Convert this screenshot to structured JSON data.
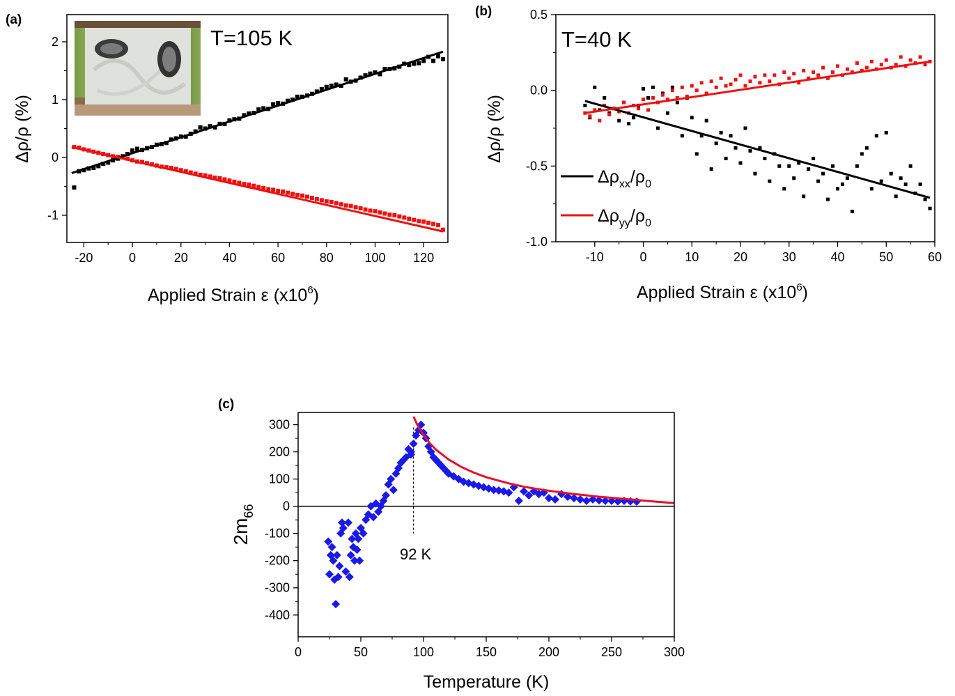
{
  "colors": {
    "black": "#000000",
    "red": "#ee1111",
    "blue": "#1a1ae6",
    "fit_red": "#e8102a"
  },
  "chart_data": [
    {
      "id": "a",
      "panel_label": "(a)",
      "type": "scatter",
      "annotation": "T=105 K",
      "inset_image": "sample-photo",
      "xlabel_main": "Applied Strain ε (x10",
      "xlabel_sup": "6",
      "xlabel_end": ")",
      "ylabel": "Δρ/ρ (%)",
      "xlim": [
        -27,
        130
      ],
      "ylim": [
        -1.47,
        2.47
      ],
      "xticks": [
        -20,
        0,
        20,
        40,
        60,
        80,
        100,
        120
      ],
      "yticks": [
        -1,
        0,
        1,
        2
      ],
      "xtick_labels": [
        "-20",
        "0",
        "20",
        "40",
        "60",
        "80",
        "100",
        "120"
      ],
      "ytick_labels": [
        "-1",
        "0",
        "1",
        "2"
      ],
      "series": [
        {
          "color": "#000000",
          "fit": {
            "x": [
              -25,
              128
            ],
            "y": [
              -0.27,
              1.83
            ]
          },
          "x": [
            -24,
            -22,
            -20,
            -18,
            -16,
            -14,
            -12,
            -10,
            -8,
            -6,
            -4,
            -2,
            0,
            2,
            4,
            6,
            8,
            10,
            12,
            14,
            16,
            18,
            20,
            22,
            24,
            26,
            28,
            30,
            32,
            34,
            36,
            38,
            40,
            42,
            44,
            46,
            48,
            50,
            52,
            54,
            56,
            58,
            60,
            62,
            64,
            66,
            68,
            70,
            72,
            74,
            76,
            78,
            80,
            82,
            84,
            86,
            88,
            90,
            92,
            94,
            96,
            98,
            100,
            102,
            104,
            106,
            108,
            110,
            112,
            114,
            116,
            118,
            120,
            122,
            124,
            126,
            128
          ],
          "y": [
            -0.52,
            -0.24,
            -0.22,
            -0.19,
            -0.18,
            -0.15,
            -0.11,
            -0.09,
            -0.05,
            -0.02,
            0.02,
            0.06,
            0.12,
            0.15,
            0.13,
            0.16,
            0.18,
            0.22,
            0.23,
            0.25,
            0.31,
            0.33,
            0.36,
            0.36,
            0.41,
            0.45,
            0.52,
            0.5,
            0.54,
            0.52,
            0.58,
            0.58,
            0.64,
            0.66,
            0.67,
            0.73,
            0.76,
            0.77,
            0.83,
            0.85,
            0.84,
            0.92,
            0.94,
            0.93,
            0.98,
            1.0,
            1.05,
            1.05,
            1.07,
            1.1,
            1.14,
            1.18,
            1.22,
            1.24,
            1.26,
            1.24,
            1.35,
            1.31,
            1.33,
            1.38,
            1.42,
            1.45,
            1.47,
            1.44,
            1.53,
            1.53,
            1.54,
            1.57,
            1.62,
            1.6,
            1.62,
            1.63,
            1.67,
            1.74,
            1.67,
            1.75,
            1.7
          ]
        },
        {
          "color": "#ee1111",
          "fit": {
            "x": [
              -25,
              128
            ],
            "y": [
              0.18,
              -1.28
            ]
          },
          "x": [
            -24,
            -22,
            -20,
            -18,
            -16,
            -14,
            -12,
            -10,
            -8,
            -6,
            -4,
            -2,
            0,
            2,
            4,
            6,
            8,
            10,
            12,
            14,
            16,
            18,
            20,
            22,
            24,
            26,
            28,
            30,
            32,
            34,
            36,
            38,
            40,
            42,
            44,
            46,
            48,
            50,
            52,
            54,
            56,
            58,
            60,
            62,
            64,
            66,
            68,
            70,
            72,
            74,
            76,
            78,
            80,
            82,
            84,
            86,
            88,
            90,
            92,
            94,
            96,
            98,
            100,
            102,
            104,
            106,
            108,
            110,
            112,
            114,
            116,
            118,
            120,
            122,
            124,
            126,
            128
          ],
          "y": [
            0.18,
            0.17,
            0.14,
            0.12,
            0.1,
            0.08,
            0.06,
            0.04,
            0.02,
            0.01,
            0.0,
            -0.02,
            -0.05,
            -0.07,
            -0.08,
            -0.1,
            -0.12,
            -0.14,
            -0.16,
            -0.17,
            -0.18,
            -0.2,
            -0.22,
            -0.24,
            -0.26,
            -0.28,
            -0.3,
            -0.31,
            -0.33,
            -0.35,
            -0.36,
            -0.38,
            -0.4,
            -0.42,
            -0.44,
            -0.46,
            -0.47,
            -0.49,
            -0.51,
            -0.53,
            -0.55,
            -0.56,
            -0.58,
            -0.59,
            -0.61,
            -0.63,
            -0.65,
            -0.66,
            -0.68,
            -0.7,
            -0.72,
            -0.74,
            -0.76,
            -0.77,
            -0.79,
            -0.81,
            -0.83,
            -0.84,
            -0.86,
            -0.88,
            -0.9,
            -0.92,
            -0.93,
            -0.95,
            -0.97,
            -0.99,
            -1.0,
            -1.02,
            -1.04,
            -1.06,
            -1.08,
            -1.1,
            -1.11,
            -1.13,
            -1.15,
            -1.17,
            -1.25
          ]
        }
      ]
    },
    {
      "id": "b",
      "panel_label": "(b)",
      "type": "scatter",
      "annotation": "T=40 K",
      "xlabel_main": "Applied Strain ε (x10",
      "xlabel_sup": "6",
      "xlabel_end": ")",
      "ylabel": "Δρ/ρ (%)",
      "xlim": [
        -18,
        60
      ],
      "ylim": [
        -1.0,
        0.5
      ],
      "xticks": [
        -10,
        0,
        10,
        20,
        30,
        40,
        50,
        60
      ],
      "yticks": [
        -1.0,
        -0.5,
        0.0,
        0.5
      ],
      "xtick_labels": [
        "-10",
        "0",
        "10",
        "20",
        "30",
        "40",
        "50",
        "60"
      ],
      "ytick_labels": [
        "-1.0",
        "-0.5",
        "0.0",
        "0.5"
      ],
      "legend": {
        "position": "left",
        "entries": [
          {
            "main": "Δρ",
            "sub1": "xx",
            "mid": "/ρ",
            "sub2": "0",
            "color": "#000000"
          },
          {
            "main": "Δρ",
            "sub1": "yy",
            "mid": "/ρ",
            "sub2": "0",
            "color": "#ee1111"
          }
        ]
      },
      "series": [
        {
          "color": "#000000",
          "fit": {
            "x": [
              -12,
              59
            ],
            "y": [
              -0.07,
              -0.71
            ]
          },
          "x": [
            -12,
            -11,
            -10,
            -9,
            -8,
            -7,
            -6,
            -5,
            -4,
            -3,
            -2,
            -1,
            0,
            1,
            2,
            3,
            4,
            5,
            6,
            7,
            8,
            9,
            10,
            11,
            12,
            13,
            14,
            15,
            16,
            17,
            18,
            19,
            20,
            21,
            22,
            23,
            24,
            25,
            26,
            27,
            28,
            29,
            30,
            31,
            32,
            33,
            34,
            35,
            36,
            37,
            38,
            39,
            40,
            41,
            42,
            43,
            44,
            45,
            46,
            47,
            48,
            49,
            50,
            51,
            52,
            53,
            54,
            55,
            56,
            57,
            58,
            59
          ],
          "y": [
            -0.1,
            -0.18,
            0.02,
            -0.13,
            -0.05,
            -0.15,
            -0.12,
            -0.2,
            -0.08,
            -0.22,
            -0.18,
            -0.1,
            0.01,
            -0.05,
            0.02,
            -0.25,
            -0.02,
            -0.15,
            0.02,
            -0.08,
            -0.3,
            -0.05,
            -0.18,
            -0.42,
            -0.3,
            -0.2,
            -0.52,
            -0.35,
            -0.28,
            -0.45,
            -0.3,
            -0.38,
            -0.48,
            -0.25,
            -0.4,
            -0.55,
            -0.38,
            -0.45,
            -0.6,
            -0.42,
            -0.5,
            -0.65,
            -0.5,
            -0.58,
            -0.48,
            -0.7,
            -0.52,
            -0.45,
            -0.6,
            -0.55,
            -0.72,
            -0.5,
            -0.65,
            -0.62,
            -0.58,
            -0.8,
            -0.5,
            -0.42,
            -0.38,
            -0.65,
            -0.3,
            -0.6,
            -0.28,
            -0.55,
            -0.7,
            -0.58,
            -0.62,
            -0.5,
            -0.68,
            -0.62,
            -0.72,
            -0.78
          ]
        },
        {
          "color": "#ee1111",
          "fit": {
            "x": [
              -12,
              59
            ],
            "y": [
              -0.15,
              0.19
            ]
          },
          "x": [
            -12,
            -11,
            -10,
            -9,
            -8,
            -7,
            -6,
            -5,
            -4,
            -3,
            -2,
            -1,
            0,
            1,
            2,
            3,
            4,
            5,
            6,
            7,
            8,
            9,
            10,
            11,
            12,
            13,
            14,
            15,
            16,
            17,
            18,
            19,
            20,
            21,
            22,
            23,
            24,
            25,
            26,
            27,
            28,
            29,
            30,
            31,
            32,
            33,
            34,
            35,
            36,
            37,
            38,
            39,
            40,
            41,
            42,
            43,
            44,
            45,
            46,
            47,
            48,
            49,
            50,
            51,
            52,
            53,
            54,
            55,
            56,
            57,
            58,
            59
          ],
          "y": [
            -0.15,
            -0.17,
            -0.13,
            -0.2,
            -0.1,
            -0.16,
            -0.12,
            -0.14,
            -0.08,
            -0.15,
            -0.1,
            -0.12,
            -0.06,
            -0.13,
            -0.05,
            -0.08,
            -0.03,
            -0.06,
            0.0,
            -0.05,
            0.02,
            -0.04,
            0.03,
            0.0,
            0.05,
            -0.02,
            0.06,
            0.02,
            0.08,
            0.03,
            0.04,
            0.07,
            0.1,
            0.03,
            0.06,
            0.09,
            0.05,
            0.1,
            0.06,
            0.1,
            0.04,
            0.12,
            0.08,
            0.11,
            0.05,
            0.13,
            0.08,
            0.12,
            0.1,
            0.15,
            0.08,
            0.12,
            0.16,
            0.1,
            0.14,
            0.12,
            0.18,
            0.13,
            0.15,
            0.19,
            0.14,
            0.17,
            0.2,
            0.15,
            0.17,
            0.22,
            0.16,
            0.2,
            0.18,
            0.22,
            0.17,
            0.19
          ]
        }
      ]
    },
    {
      "id": "c",
      "panel_label": "(c)",
      "type": "scatter",
      "xlabel": "Temperature (K)",
      "ylabel_main": "2m",
      "ylabel_sub": "66",
      "xlim": [
        0,
        300
      ],
      "ylim": [
        -480,
        345
      ],
      "xticks": [
        0,
        50,
        100,
        150,
        200,
        250,
        300
      ],
      "yticks": [
        -400,
        -300,
        -200,
        -100,
        0,
        100,
        200,
        300
      ],
      "xtick_labels": [
        "0",
        "50",
        "100",
        "150",
        "200",
        "250",
        "300"
      ],
      "ytick_labels": [
        "-400",
        "-300",
        "-200",
        "-100",
        "0",
        "100",
        "200",
        "300"
      ],
      "annotation": "92 K",
      "annotation_x": 92,
      "fit_curve": {
        "color": "#e8102a",
        "x": [
          92,
          95,
          100,
          105,
          110,
          120,
          130,
          140,
          150,
          160,
          170,
          180,
          190,
          200,
          210,
          220,
          230,
          240,
          250,
          260,
          270,
          280,
          290,
          300
        ],
        "y": [
          330,
          300,
          262,
          232,
          208,
          172,
          145,
          124,
          107,
          94,
          82,
          72,
          64,
          57,
          51,
          45,
          40,
          35,
          31,
          27,
          23,
          19,
          15,
          12
        ]
      },
      "series": [
        {
          "color": "#1a1ae6",
          "x": [
            24,
            25,
            26,
            27,
            28,
            29,
            30,
            31,
            32,
            33,
            34,
            35,
            36,
            38,
            40,
            41,
            42,
            43,
            44,
            45,
            46,
            47,
            48,
            49,
            50,
            52,
            54,
            56,
            58,
            60,
            62,
            64,
            66,
            68,
            70,
            72,
            74,
            76,
            78,
            80,
            82,
            84,
            86,
            88,
            90,
            90,
            92,
            94,
            96,
            98,
            100,
            102,
            104,
            106,
            108,
            110,
            112,
            114,
            116,
            118,
            120,
            124,
            128,
            132,
            136,
            140,
            144,
            148,
            152,
            156,
            160,
            164,
            168,
            172,
            176,
            180,
            184,
            188,
            192,
            196,
            200,
            205,
            210,
            215,
            220,
            225,
            230,
            235,
            240,
            245,
            250,
            255,
            260,
            265,
            270
          ],
          "y": [
            -130,
            -250,
            -180,
            -150,
            -200,
            -270,
            -360,
            -180,
            -260,
            -220,
            -100,
            -60,
            -80,
            -240,
            -60,
            -260,
            -180,
            -120,
            -150,
            -200,
            -100,
            -160,
            -120,
            -200,
            -80,
            -100,
            -50,
            -30,
            0,
            -40,
            10,
            -20,
            0,
            20,
            40,
            80,
            100,
            60,
            120,
            140,
            160,
            170,
            180,
            210,
            200,
            190,
            230,
            260,
            280,
            300,
            270,
            250,
            220,
            200,
            180,
            170,
            160,
            150,
            140,
            130,
            120,
            110,
            100,
            90,
            85,
            80,
            75,
            70,
            65,
            60,
            58,
            55,
            50,
            70,
            20,
            55,
            40,
            55,
            45,
            50,
            30,
            25,
            45,
            35,
            30,
            25,
            20,
            25,
            22,
            20,
            20,
            18,
            20,
            18,
            17
          ]
        }
      ]
    }
  ]
}
